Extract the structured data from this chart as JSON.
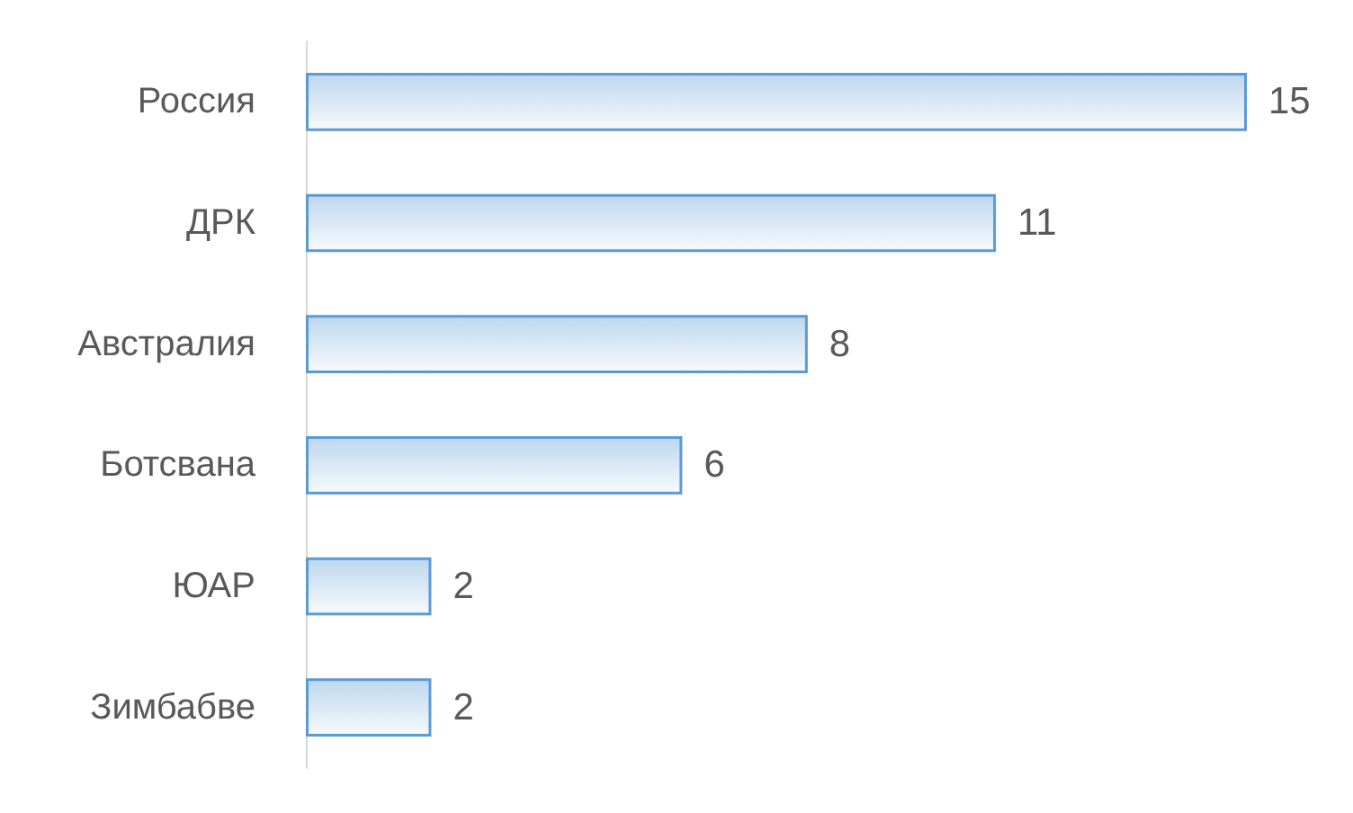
{
  "chart_data": {
    "type": "bar",
    "orientation": "horizontal",
    "categories": [
      "Россия",
      "ДРК",
      "Австралия",
      "Ботсвана",
      "ЮАР",
      "Зимбабве"
    ],
    "series": [
      {
        "color": "#5b9bd5",
        "values": [
          15,
          11,
          8,
          6,
          2,
          2
        ]
      }
    ],
    "data_labels": true,
    "tick_labels": "y",
    "grid": false
  }
}
